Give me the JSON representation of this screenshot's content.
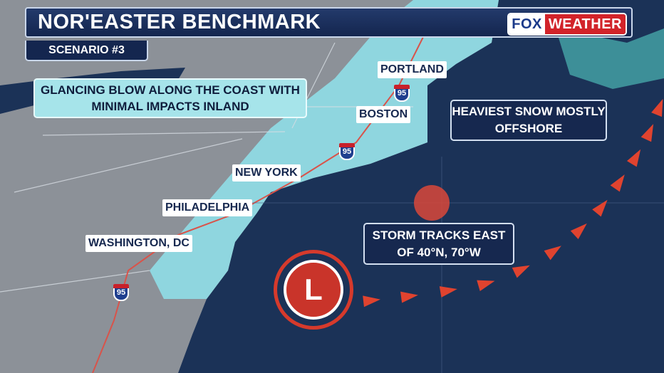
{
  "header": {
    "title": "NOR'EASTER BENCHMARK",
    "subtitle": "SCENARIO #3",
    "logo": {
      "fox": "FOX",
      "weather": "WEATHER"
    }
  },
  "callouts": {
    "inland": "GLANCING BLOW ALONG THE COAST WITH MINIMAL IMPACTS INLAND",
    "offshore": "HEAVIEST SNOW MOSTLY OFFSHORE",
    "track": "STORM TRACKS EAST OF 40°N, 70°W"
  },
  "cities": [
    "PORTLAND",
    "BOSTON",
    "NEW YORK",
    "PHILADELPHIA",
    "WASHINGTON, DC"
  ],
  "highway": {
    "label": "95"
  },
  "low_pressure": {
    "label": "L"
  },
  "colors": {
    "ocean": "#1b3257",
    "land": "#8c9198",
    "snow": "#8fd6df",
    "track": "#e0432f",
    "storm": "#d63a2c"
  }
}
